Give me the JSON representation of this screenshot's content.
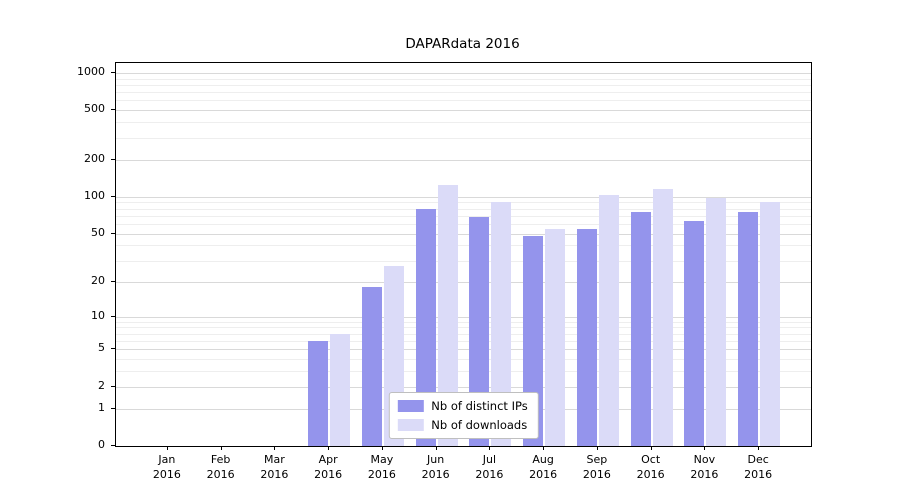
{
  "title": "DAPARdata 2016",
  "chart_data": {
    "type": "bar",
    "title": "DAPARdata 2016",
    "categories": [
      "Jan",
      "Feb",
      "Mar",
      "Apr",
      "May",
      "Jun",
      "Jul",
      "Aug",
      "Sep",
      "Oct",
      "Nov",
      "Dec"
    ],
    "year": "2016",
    "series": [
      {
        "name": "Nb of distinct IPs",
        "color": "#9494ec",
        "values": [
          0,
          0,
          0,
          6,
          18,
          80,
          68,
          48,
          55,
          75,
          63,
          75
        ]
      },
      {
        "name": "Nb of downloads",
        "color": "#dbdbf8",
        "values": [
          0,
          0,
          0,
          7,
          27,
          125,
          90,
          55,
          103,
          115,
          97,
          90
        ]
      }
    ],
    "xlabel": "",
    "ylabel": "",
    "yscale": "log1p",
    "yticks": [
      0,
      1,
      2,
      5,
      10,
      20,
      50,
      100,
      200,
      500,
      1000
    ],
    "minor_yticks": [
      3,
      4,
      6,
      7,
      8,
      9,
      30,
      40,
      60,
      70,
      80,
      90,
      300,
      400,
      600,
      700,
      800,
      900
    ],
    "ylim": [
      0,
      1200
    ],
    "grid": true,
    "legend_position": "lower center"
  },
  "colors": {
    "major_grid": "#d9d9d9",
    "minor_grid": "#eeeeee",
    "axis": "#000000",
    "background": "#ffffff"
  }
}
